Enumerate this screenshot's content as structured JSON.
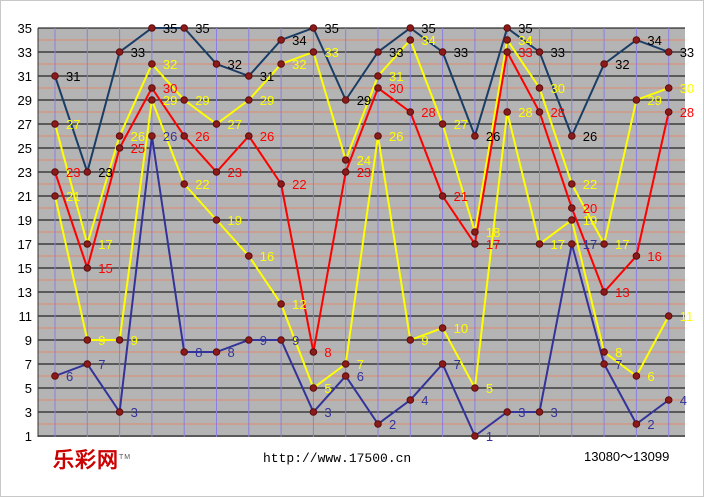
{
  "chart_data": {
    "type": "line",
    "title": "",
    "xlabel": "",
    "ylabel": "",
    "ylim": [
      1,
      35
    ],
    "y_ticks": [
      1,
      3,
      5,
      7,
      9,
      11,
      13,
      15,
      17,
      19,
      21,
      23,
      25,
      27,
      29,
      31,
      33,
      35
    ],
    "grid": true,
    "background": "#b4b4b4",
    "x_count": 20,
    "series": [
      {
        "color": "#1a3d66",
        "label_color": "#000000",
        "values": [
          31,
          23,
          33,
          35,
          35,
          32,
          31,
          34,
          35,
          29,
          33,
          35,
          33,
          26,
          35,
          33,
          26,
          32,
          34,
          33
        ]
      },
      {
        "color": "#ffff00",
        "label_color": "#ffff00",
        "values": [
          27,
          17,
          26,
          32,
          29,
          27,
          29,
          32,
          33,
          24,
          31,
          34,
          27,
          18,
          34,
          30,
          22,
          17,
          29,
          30
        ]
      },
      {
        "color": "#ff0000",
        "label_color": "#ff0000",
        "values": [
          23,
          15,
          25,
          30,
          26,
          23,
          26,
          22,
          8,
          23,
          30,
          28,
          21,
          17,
          33,
          28,
          20,
          13,
          16,
          28
        ]
      },
      {
        "color": "#ffff00",
        "label_color": "#ffff00",
        "values": [
          21,
          9,
          9,
          29,
          22,
          19,
          16,
          12,
          5,
          7,
          26,
          9,
          10,
          5,
          28,
          17,
          19,
          8,
          6,
          11
        ]
      },
      {
        "color": "#333399",
        "label_color": "#333399",
        "values": [
          6,
          7,
          3,
          26,
          8,
          8,
          9,
          9,
          3,
          6,
          2,
          4,
          7,
          1,
          3,
          3,
          17,
          7,
          2,
          4
        ]
      }
    ]
  },
  "footer": {
    "logo_text": "乐彩网",
    "logo_mark": "TM",
    "url": "http://www.17500.cn",
    "period_range": "13080～13099"
  }
}
